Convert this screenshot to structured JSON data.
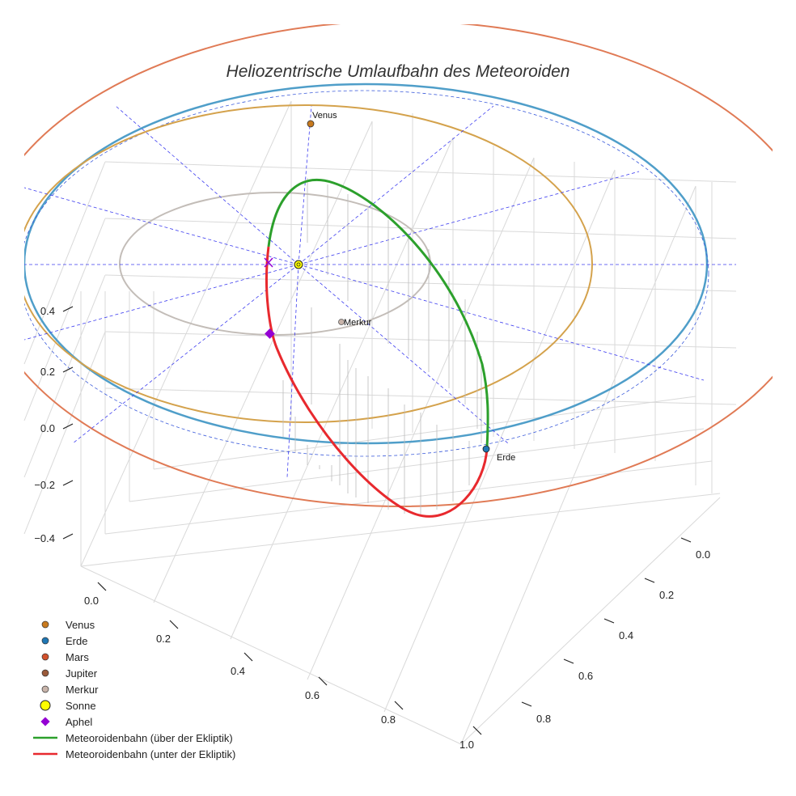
{
  "chart_data": {
    "type": "scatter",
    "title": "Heliozentrische Umlaufbahn des Meteoroiden",
    "axes": {
      "x_ticks": [
        "0.0",
        "0.2",
        "0.4",
        "0.6",
        "0.8",
        "1.0"
      ],
      "y_ticks": [
        "0.0",
        "0.2",
        "0.4",
        "0.6",
        "0.8"
      ],
      "z_ticks": [
        "0.4",
        "0.2",
        "0.0",
        "−0.2",
        "−0.4"
      ],
      "xlim": [
        0.0,
        1.05
      ],
      "ylim": [
        -0.1,
        0.9
      ],
      "zlim": [
        -0.5,
        0.5
      ],
      "grid": true
    },
    "legend": {
      "placement": "bottom-left",
      "entries": [
        {
          "label": "Venus",
          "kind": "dot",
          "color": "#c87a1e"
        },
        {
          "label": "Erde",
          "kind": "dot",
          "color": "#1f77b4"
        },
        {
          "label": "Mars",
          "kind": "dot",
          "color": "#d2512c"
        },
        {
          "label": "Jupiter",
          "kind": "dot",
          "color": "#9a5a3a"
        },
        {
          "label": "Merkur",
          "kind": "dot",
          "color": "#c8b4aa"
        },
        {
          "label": "Sonne",
          "kind": "sun",
          "color": "#ffff00"
        },
        {
          "label": "Aphel",
          "kind": "diamond",
          "color": "#9400d3"
        },
        {
          "label": "Meteoroidenbahn (über der Ekliptik)",
          "kind": "line",
          "color": "#2ca02c"
        },
        {
          "label": "Meteoroidenbahn (unter der Ekliptik)",
          "kind": "line",
          "color": "#e8292e"
        }
      ]
    },
    "orbits": [
      {
        "name": "Merkur",
        "color": "#c3bdb8",
        "radius_au": 0.39
      },
      {
        "name": "Venus",
        "color": "#d4a24c",
        "radius_au": 0.72
      },
      {
        "name": "Erde",
        "color": "#4f9ec9",
        "radius_au": 1.0
      },
      {
        "name": "Mars",
        "color": "#e07a55",
        "radius_au": 1.52
      }
    ],
    "planet_labels": [
      {
        "name": "Venus",
        "color": "#c87a1e"
      },
      {
        "name": "Merkur",
        "color": "#c8b4aa"
      },
      {
        "name": "Erde",
        "color": "#1f77b4"
      }
    ],
    "sun_marker": {
      "label": "Sonne",
      "color": "#ffff00"
    },
    "aphel_marker": {
      "label": "Aphel",
      "color": "#9400d3"
    },
    "perihel_marker": {
      "color": "#9400d3"
    },
    "meteoroid_orbit": {
      "above_color": "#2ca02c",
      "below_color": "#e8292e"
    }
  }
}
